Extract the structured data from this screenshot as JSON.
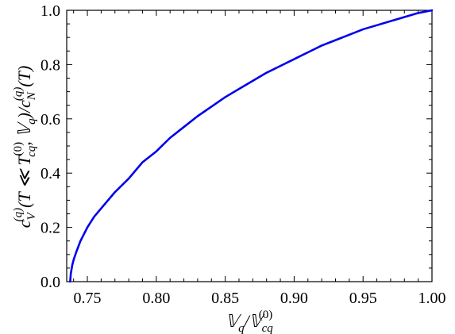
{
  "chart_data": {
    "type": "line",
    "xlabel": {
      "base": "𝕍",
      "sub1": "q",
      "sep": "/",
      "base2": "𝕍",
      "sub2": "cq",
      "sup2": "(0)"
    },
    "ylabel": {
      "c": "c",
      "sub_V": "V",
      "sup_q": "(q)",
      "mid": "(T ≪ T",
      "sup_0": "(0)",
      "sub_cq": "cq",
      "rest": ", 𝕍",
      "sub_q": "q",
      "div": ")/c",
      "sub_N": "N",
      "sup_q2": "(q)",
      "tail": "(T)"
    },
    "xlim": [
      0.735,
      1.0
    ],
    "ylim": [
      0.0,
      1.0
    ],
    "x_ticks": [
      0.75,
      0.8,
      0.85,
      0.9,
      0.95,
      1.0
    ],
    "x_tick_labels": [
      "0.75",
      "0.80",
      "0.85",
      "0.90",
      "0.95",
      "1.00"
    ],
    "y_ticks": [
      0.0,
      0.2,
      0.4,
      0.6,
      0.8,
      1.0
    ],
    "y_tick_labels": [
      "0.0",
      "0.2",
      "0.4",
      "0.6",
      "0.8",
      "1.0"
    ],
    "grid": false,
    "series": [
      {
        "color": "#0000ee",
        "x": [
          0.7375,
          0.738,
          0.739,
          0.74,
          0.742,
          0.745,
          0.75,
          0.755,
          0.76,
          0.77,
          0.78,
          0.79,
          0.8,
          0.81,
          0.82,
          0.83,
          0.84,
          0.85,
          0.86,
          0.87,
          0.88,
          0.89,
          0.9,
          0.91,
          0.92,
          0.93,
          0.94,
          0.95,
          0.96,
          0.97,
          0.98,
          0.99,
          1.0
        ],
        "y": [
          0.0,
          0.03,
          0.06,
          0.08,
          0.11,
          0.15,
          0.2,
          0.24,
          0.27,
          0.33,
          0.38,
          0.44,
          0.48,
          0.53,
          0.57,
          0.61,
          0.645,
          0.68,
          0.71,
          0.74,
          0.77,
          0.795,
          0.82,
          0.845,
          0.87,
          0.89,
          0.91,
          0.93,
          0.945,
          0.96,
          0.975,
          0.99,
          1.0
        ]
      }
    ]
  }
}
